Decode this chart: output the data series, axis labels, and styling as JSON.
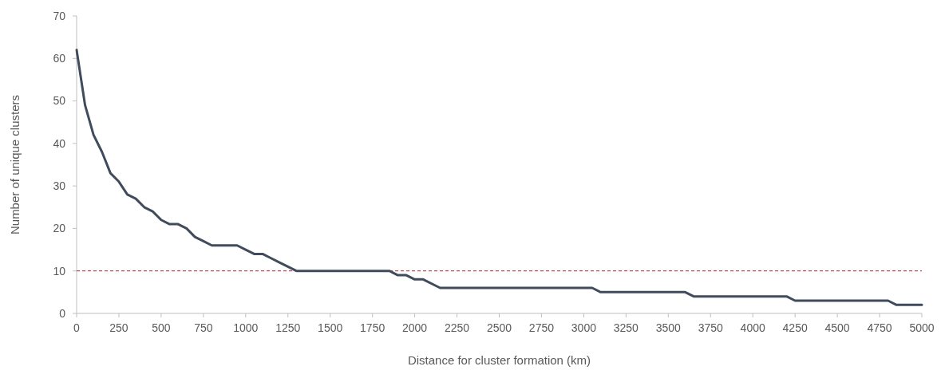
{
  "chart_data": {
    "type": "line",
    "xlabel": "Distance for cluster formation (km)",
    "ylabel": "Number of unique clusters",
    "x": [
      0,
      50,
      100,
      150,
      200,
      250,
      300,
      350,
      400,
      450,
      500,
      550,
      600,
      650,
      700,
      750,
      800,
      850,
      900,
      950,
      1000,
      1050,
      1100,
      1150,
      1200,
      1250,
      1300,
      1850,
      1900,
      1950,
      2000,
      2050,
      2150,
      3050,
      3100,
      3600,
      3650,
      4200,
      4250,
      4800,
      4850,
      5000
    ],
    "series": [
      {
        "color": "#404b5c",
        "values": [
          62,
          49,
          42,
          38,
          33,
          31,
          28,
          27,
          25,
          24,
          22,
          21,
          21,
          20,
          18,
          17,
          16,
          16,
          16,
          16,
          15,
          14,
          14,
          13,
          12,
          11,
          10,
          10,
          9,
          9,
          8,
          8,
          6,
          6,
          5,
          5,
          4,
          4,
          3,
          3,
          2,
          2
        ]
      }
    ],
    "xlim": [
      0,
      5000
    ],
    "xticks": [
      0,
      250,
      500,
      750,
      1000,
      1250,
      1500,
      1750,
      2000,
      2250,
      2500,
      2750,
      3000,
      3250,
      3500,
      3750,
      4000,
      4250,
      4500,
      4750,
      5000
    ],
    "ylim": [
      0,
      70
    ],
    "yticks": [
      0,
      10,
      20,
      30,
      40,
      50,
      60,
      70
    ],
    "ref_lines": [
      {
        "axis": "y",
        "value": 10,
        "color": "#c0504d",
        "line_style": "dashed"
      }
    ],
    "grid": false,
    "marker": "none",
    "line_style": "solid"
  }
}
